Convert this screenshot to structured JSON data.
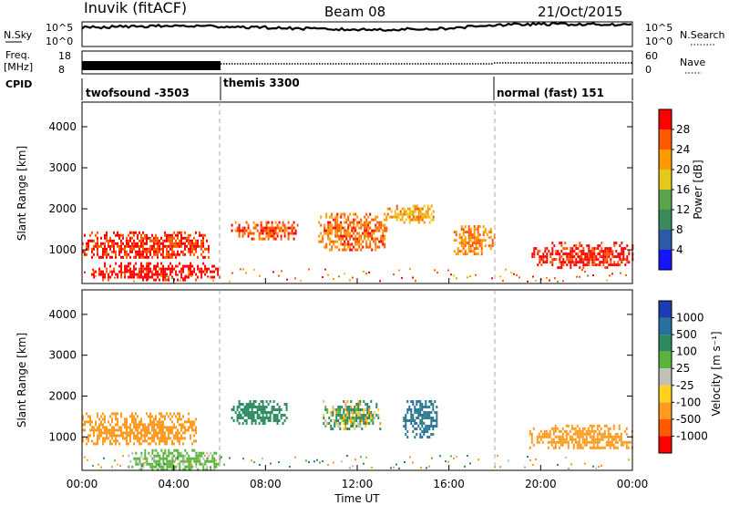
{
  "header": {
    "station": "Inuvik (fitACF)",
    "beam": "Beam 08",
    "date": "21/Oct/2015"
  },
  "top_panels": {
    "nsky_label": "N.Sky",
    "nsky_ticks": [
      "10^5",
      "10^0"
    ],
    "nsearch_label": "N.Search",
    "nsearch_ticks": [
      "10^5",
      "10^0"
    ],
    "freq_label_1": "Freq.",
    "freq_label_2": "[MHz]",
    "freq_ticks": [
      "18",
      "8"
    ],
    "nave_label": "Nave",
    "nave_ticks": [
      "60",
      "0"
    ],
    "cpid_label": "CPID",
    "modes": [
      "twofsound -3503",
      "themis 3300",
      "normal (fast) 151"
    ]
  },
  "axes": {
    "y_label": "Slant Range [km]",
    "y_ticks": [
      "1000",
      "2000",
      "3000",
      "4000"
    ],
    "x_label": "Time UT",
    "x_ticks": [
      "00:00",
      "04:00",
      "08:00",
      "12:00",
      "16:00",
      "20:00",
      "00:00"
    ]
  },
  "colorbars": {
    "power": {
      "label": "Power [dB]",
      "ticks": [
        "4",
        "8",
        "12",
        "16",
        "20",
        "24",
        "28"
      ],
      "colors": [
        "#1414ff",
        "#2b5aa8",
        "#3c8a5c",
        "#5aa54a",
        "#e6c818",
        "#ff9a00",
        "#ff5a00",
        "#ff0000"
      ]
    },
    "velocity": {
      "label": "Velocity [m s⁻¹]",
      "ticks": [
        "1000",
        "500",
        "100",
        "25",
        "-25",
        "-100",
        "-500",
        "-1000"
      ],
      "colors": [
        "#1e3cb4",
        "#2870a0",
        "#2c8a60",
        "#5ab43c",
        "#c0c0b8",
        "#ffd21e",
        "#ff9a1e",
        "#ff5a00",
        "#ff0000"
      ]
    }
  },
  "chart_data": [
    {
      "type": "heatmap",
      "title": "Power [dB]",
      "xlabel": "Time UT",
      "ylabel": "Slant Range [km]",
      "xlim": [
        0,
        24
      ],
      "ylim": [
        180,
        4600
      ],
      "value_range": [
        0,
        30
      ],
      "features": [
        {
          "t_start": 0.0,
          "t_end": 5.5,
          "range_km": [
            800,
            1450
          ],
          "power_db": [
            20,
            30
          ]
        },
        {
          "t_start": 0.4,
          "t_end": 6.0,
          "range_km": [
            300,
            700
          ],
          "power_db": [
            24,
            30
          ]
        },
        {
          "t_start": 6.5,
          "t_end": 9.4,
          "range_km": [
            1300,
            1700
          ],
          "power_db": [
            18,
            28
          ]
        },
        {
          "t_start": 10.3,
          "t_end": 13.3,
          "range_km": [
            1000,
            1900
          ],
          "power_db": [
            16,
            28
          ]
        },
        {
          "t_start": 13.3,
          "t_end": 15.3,
          "range_km": [
            1700,
            2100
          ],
          "power_db": [
            12,
            24
          ]
        },
        {
          "t_start": 16.2,
          "t_end": 18.0,
          "range_km": [
            900,
            1600
          ],
          "power_db": [
            16,
            26
          ]
        },
        {
          "t_start": 19.6,
          "t_end": 24.0,
          "range_km": [
            600,
            1200
          ],
          "power_db": [
            22,
            30
          ]
        }
      ]
    },
    {
      "type": "heatmap",
      "title": "Velocity [m s⁻¹]",
      "xlabel": "Time UT",
      "ylabel": "Slant Range [km]",
      "xlim": [
        0,
        24
      ],
      "ylim": [
        180,
        4600
      ],
      "value_range": [
        -1000,
        1000
      ],
      "features": [
        {
          "t_start": 0.0,
          "t_end": 5.0,
          "range_km": [
            800,
            1600
          ],
          "velocity_ms": [
            -500,
            -100
          ]
        },
        {
          "t_start": 2.0,
          "t_end": 6.0,
          "range_km": [
            200,
            700
          ],
          "velocity_ms": [
            -25,
            100
          ]
        },
        {
          "t_start": 6.5,
          "t_end": 9.0,
          "range_km": [
            1300,
            1900
          ],
          "velocity_ms": [
            100,
            500
          ]
        },
        {
          "t_start": 10.5,
          "t_end": 13.0,
          "range_km": [
            1200,
            1900
          ],
          "velocity_ms": [
            -500,
            500
          ]
        },
        {
          "t_start": 14.0,
          "t_end": 15.5,
          "range_km": [
            1000,
            1900
          ],
          "velocity_ms": [
            100,
            1000
          ]
        },
        {
          "t_start": 19.5,
          "t_end": 24.0,
          "range_km": [
            700,
            1300
          ],
          "velocity_ms": [
            -500,
            -100
          ]
        }
      ]
    }
  ]
}
